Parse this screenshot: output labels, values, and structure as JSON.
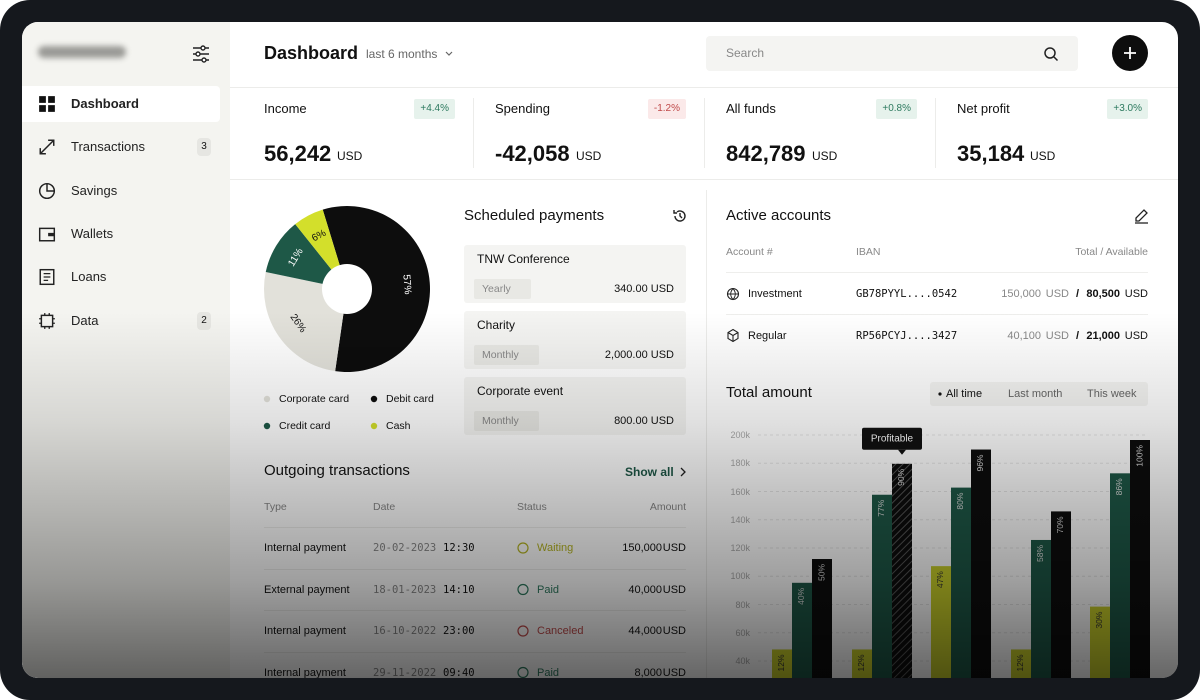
{
  "sidebar": {
    "nav": [
      {
        "label": "Dashboard"
      },
      {
        "label": "Transactions",
        "badge": "3"
      },
      {
        "label": "Savings"
      },
      {
        "label": "Wallets"
      },
      {
        "label": "Loans"
      },
      {
        "label": "Data",
        "badge": "2"
      }
    ]
  },
  "header": {
    "title": "Dashboard",
    "period": "last 6 months",
    "search_placeholder": "Search"
  },
  "kpis": [
    {
      "label": "Income",
      "change": "+4.4%",
      "value": "56,242",
      "unit": "USD"
    },
    {
      "label": "Spending",
      "change": "-1.2%",
      "value": "-42,058",
      "unit": "USD"
    },
    {
      "label": "All funds",
      "change": "+0.8%",
      "value": "842,789",
      "unit": "USD"
    },
    {
      "label": "Net profit",
      "change": "+3.0%",
      "value": "35,184",
      "unit": "USD"
    }
  ],
  "breakdown": {
    "type": "pie",
    "categories": [
      "Corporate card",
      "Debit card",
      "Credit card",
      "Cash"
    ],
    "values": [
      26,
      57,
      11,
      6
    ],
    "value_labels": [
      "26%",
      "57%",
      "11%",
      "6%"
    ],
    "colors": [
      "#e2e1da",
      "#0d0d0d",
      "#1e5847",
      "#d3df2b"
    ]
  },
  "scheduled_payments": {
    "title": "Scheduled payments",
    "items": [
      {
        "name": "TNW Conference",
        "frequency": "Yearly",
        "amount": "340.00 USD"
      },
      {
        "name": "Charity",
        "frequency": "Monthly",
        "amount": "2,000.00 USD"
      },
      {
        "name": "Corporate event",
        "frequency": "Monthly",
        "amount": "800.00 USD"
      }
    ]
  },
  "outgoing": {
    "title": "Outgoing transactions",
    "show_all": "Show all",
    "columns": [
      "Type",
      "Date",
      "Status",
      "Amount"
    ],
    "rows": [
      {
        "type": "Internal payment",
        "date": "20-02-2023",
        "time": "12:30",
        "status": "Waiting",
        "amount": "150,000",
        "unit": "USD"
      },
      {
        "type": "External payment",
        "date": "18-01-2023",
        "time": "14:10",
        "status": "Paid",
        "amount": "40,000",
        "unit": "USD"
      },
      {
        "type": "Internal payment",
        "date": "16-10-2022",
        "time": "23:00",
        "status": "Canceled",
        "amount": "44,000",
        "unit": "USD"
      },
      {
        "type": "Internal payment",
        "date": "29-11-2022",
        "time": "09:40",
        "status": "Paid",
        "amount": "8,000",
        "unit": "USD"
      }
    ]
  },
  "accounts": {
    "title": "Active accounts",
    "columns": [
      "Account #",
      "IBAN",
      "Total / Available"
    ],
    "rows": [
      {
        "name": "Investment",
        "iban": "GB78PYYL....0542",
        "total": "150,000",
        "total_unit": "USD",
        "separator": "/",
        "available": "80,500",
        "available_unit": "USD"
      },
      {
        "name": "Regular",
        "iban": "RP56PCYJ....3427",
        "total": "40,100",
        "total_unit": "USD",
        "separator": "/",
        "available": "21,000",
        "available_unit": "USD"
      }
    ]
  },
  "total_amount": {
    "title": "Total amount",
    "tabs": [
      "All time",
      "Last month",
      "This week"
    ],
    "chart": {
      "type": "bar",
      "y_axis_labels": [
        "200k",
        "180k",
        "160k",
        "140k",
        "120k",
        "100k",
        "80k",
        "60k",
        "40k"
      ],
      "tooltip": "Profitable",
      "series": [
        {
          "color": "#c9cf2a",
          "values": [
            12,
            12,
            47,
            12,
            30
          ],
          "value_labels": [
            "12%",
            "12%",
            "47%",
            "12%",
            "30%"
          ]
        },
        {
          "color": "#1e5847",
          "values": [
            40,
            77,
            80,
            58,
            86
          ],
          "value_labels": [
            "40%",
            "77%",
            "80%",
            "58%",
            "86%"
          ]
        },
        {
          "color": "#0d0d0d",
          "values": [
            50,
            90,
            96,
            70,
            100
          ],
          "value_labels": [
            "50%",
            "90%",
            "96%",
            "70%",
            "100%"
          ]
        }
      ]
    }
  }
}
